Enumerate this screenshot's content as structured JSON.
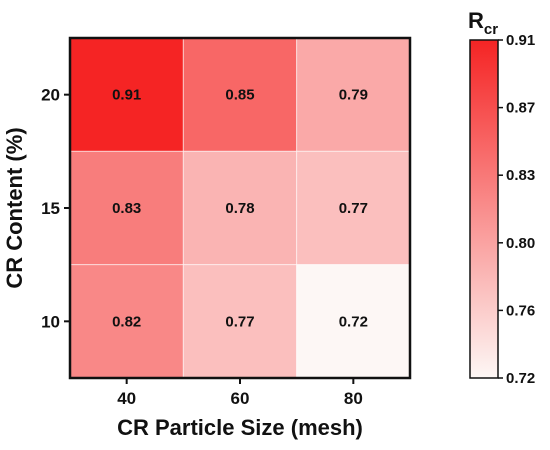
{
  "chart_data": {
    "type": "heatmap",
    "xlabel": "CR Particle Size (mesh)",
    "ylabel": "CR Content (%)",
    "x_categories": [
      "40",
      "60",
      "80"
    ],
    "y_categories": [
      "20",
      "15",
      "10"
    ],
    "values": [
      [
        0.91,
        0.85,
        0.79
      ],
      [
        0.83,
        0.78,
        0.77
      ],
      [
        0.82,
        0.77,
        0.72
      ]
    ],
    "cell_labels": [
      [
        "0.91",
        "0.85",
        "0.79"
      ],
      [
        "0.83",
        "0.78",
        "0.77"
      ],
      [
        "0.82",
        "0.77",
        "0.72"
      ]
    ],
    "colorbar": {
      "title_main": "R",
      "title_sub": "cr",
      "min": 0.72,
      "max": 0.91,
      "ticks": [
        "0.91",
        "0.87",
        "0.83",
        "0.80",
        "0.76",
        "0.72"
      ],
      "color_low": "#fdf7f5",
      "color_high": "#f52424"
    }
  }
}
